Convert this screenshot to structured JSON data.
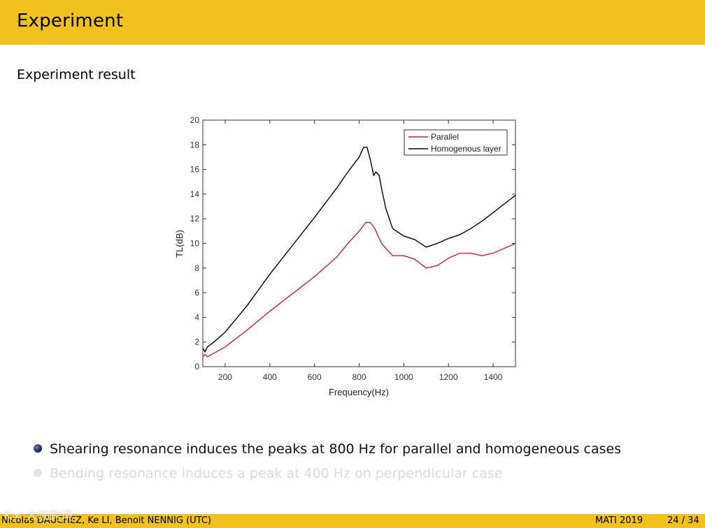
{
  "header": {
    "title": "Experiment"
  },
  "subtitle": "Experiment result",
  "chart_data": {
    "type": "line",
    "title": "",
    "xlabel": "Frequency(Hz)",
    "ylabel": "TL(dB)",
    "xlim": [
      100,
      1500
    ],
    "ylim": [
      0,
      20
    ],
    "xticks": [
      200,
      400,
      600,
      800,
      1000,
      1200,
      1400
    ],
    "yticks": [
      0,
      2,
      4,
      6,
      8,
      10,
      12,
      14,
      16,
      18,
      20
    ],
    "legend_position": "top-right",
    "series": [
      {
        "name": "Parallel",
        "color": "#c0272d",
        "x": [
          100,
          110,
          120,
          150,
          200,
          300,
          400,
          500,
          600,
          700,
          750,
          800,
          830,
          850,
          870,
          900,
          950,
          1000,
          1050,
          1100,
          1150,
          1200,
          1250,
          1300,
          1350,
          1400,
          1450,
          1500
        ],
        "y": [
          0.8,
          1.0,
          0.8,
          1.1,
          1.6,
          3.0,
          4.5,
          5.9,
          7.3,
          8.9,
          10.0,
          11.0,
          11.7,
          11.7,
          11.2,
          10.0,
          9.0,
          9.0,
          8.7,
          8.0,
          8.2,
          8.8,
          9.2,
          9.2,
          9.0,
          9.2,
          9.6,
          10.0
        ]
      },
      {
        "name": "Homogenous layer",
        "color": "#000000",
        "x": [
          100,
          110,
          120,
          150,
          200,
          300,
          400,
          500,
          600,
          700,
          750,
          800,
          820,
          835,
          850,
          865,
          875,
          890,
          900,
          920,
          950,
          1000,
          1050,
          1100,
          1150,
          1200,
          1250,
          1300,
          1350,
          1400,
          1450,
          1500
        ],
        "y": [
          1.5,
          1.2,
          1.6,
          2.0,
          2.8,
          5.0,
          7.5,
          9.8,
          12.1,
          14.5,
          15.8,
          17.0,
          17.8,
          17.8,
          16.8,
          15.5,
          15.8,
          15.5,
          14.5,
          12.8,
          11.2,
          10.6,
          10.3,
          9.7,
          10.0,
          10.4,
          10.7,
          11.2,
          11.8,
          12.5,
          13.2,
          13.9
        ]
      }
    ]
  },
  "bullets": [
    {
      "text": "Shearing resonance induces the peaks at 800 Hz for parallel and homogeneous cases"
    },
    {
      "text": "Bending resonance induces a peak at 400 Hz on perpendicular case"
    }
  ],
  "footer": {
    "authors": "Nicolas DAUCHEZ, Ke LI, Benoit NENNIG  (UTC)",
    "conference": "MATI 2019",
    "page": "24 / 34"
  },
  "watermark": "K∞ 大咖跨境",
  "colors": {
    "header": "#f2c11d",
    "accent_dark": "#1c2a58"
  }
}
